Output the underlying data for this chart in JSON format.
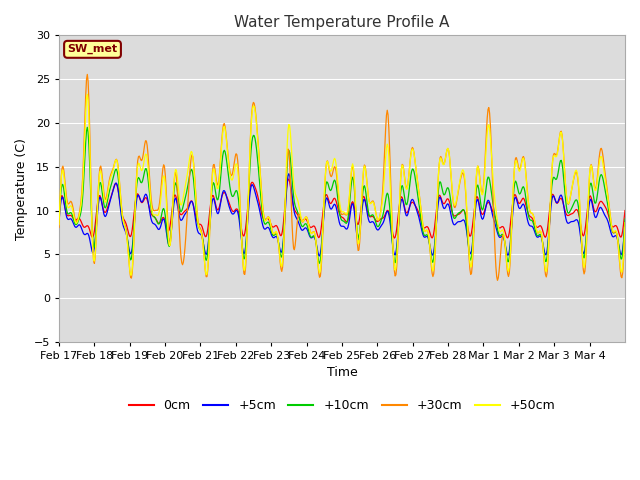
{
  "title": "Water Temperature Profile A",
  "xlabel": "Time",
  "ylabel": "Temperature (C)",
  "ylim": [
    -5,
    30
  ],
  "yticks": [
    -5,
    0,
    5,
    10,
    15,
    20,
    25,
    30
  ],
  "plot_bg": "#dcdcdc",
  "fig_bg": "#ffffff",
  "annotation_text": "SW_met",
  "annotation_bg": "#ffff99",
  "annotation_fg": "#800000",
  "annotation_border": "#800000",
  "colors": {
    "0cm": "#ff0000",
    "+5cm": "#0000ff",
    "+10cm": "#00cc00",
    "+30cm": "#ff8800",
    "+50cm": "#ffff00"
  },
  "date_labels": [
    "Feb 17",
    "Feb 18",
    "Feb 19",
    "Feb 20",
    "Feb 21",
    "Feb 22",
    "Feb 23",
    "Feb 24",
    "Feb 25",
    "Feb 26",
    "Feb 27",
    "Feb 28",
    "Mar 1",
    "Mar 2",
    "Mar 3",
    "Mar 4"
  ],
  "legend_labels": [
    "0cm",
    "+5cm",
    "+10cm",
    "+30cm",
    "+50cm"
  ],
  "title_color": "#333333",
  "grid_color": "#ffffff",
  "linewidth": 0.9
}
